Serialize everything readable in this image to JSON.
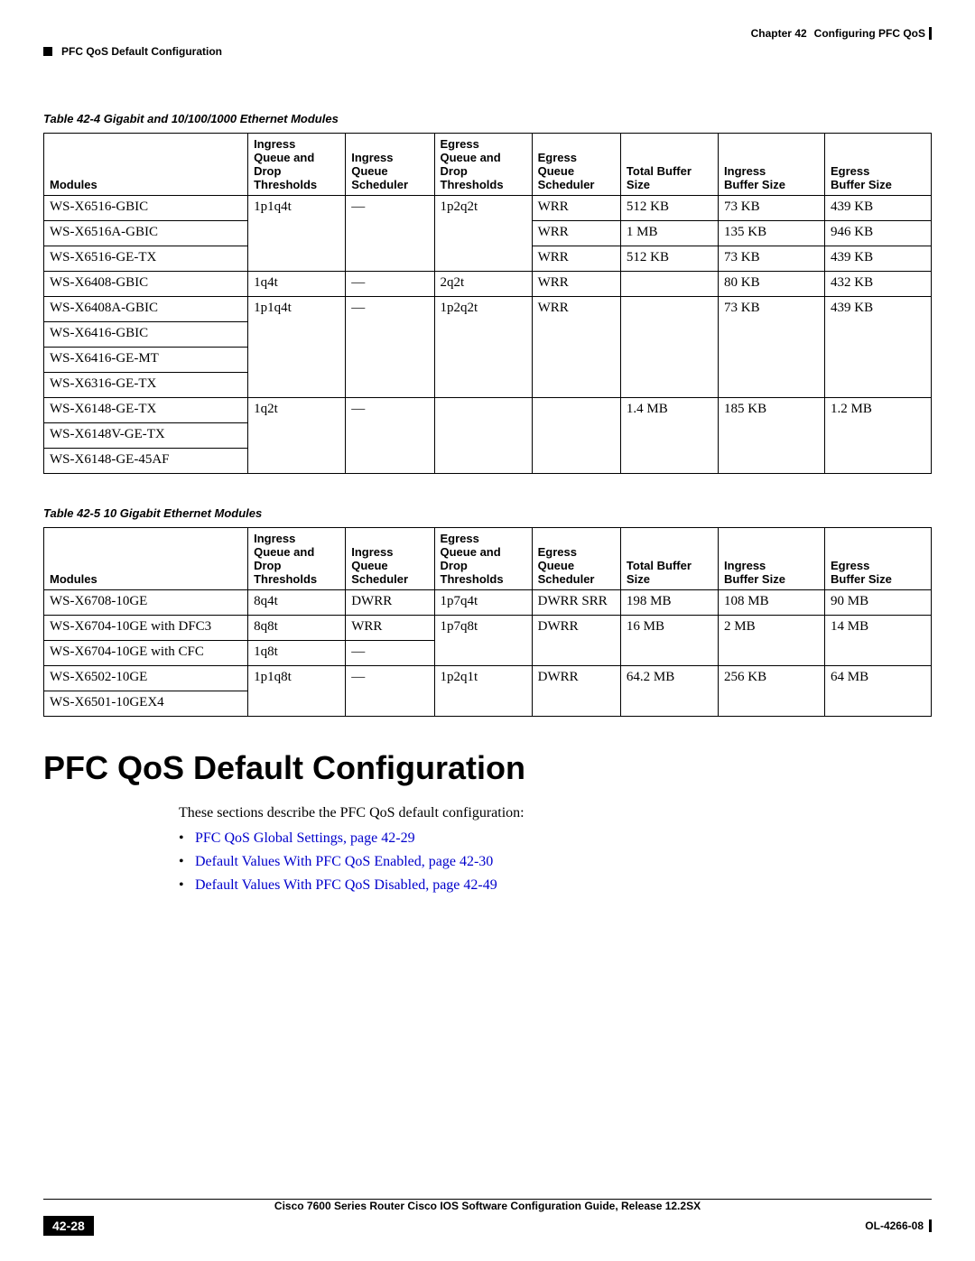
{
  "header": {
    "chapter": "Chapter 42",
    "chapter_title": "Configuring PFC QoS",
    "section": "PFC QoS Default Configuration"
  },
  "table1": {
    "caption": "Table 42-4   Gigabit and 10/100/1000 Ethernet Modules",
    "columns": [
      "Modules",
      "Ingress Queue and Drop Thresholds",
      "Ingress Queue Scheduler",
      "Egress Queue and Drop Thresholds",
      "Egress Queue Scheduler",
      "Total Buffer Size",
      "Ingress Buffer Size",
      "Egress Buffer Size"
    ],
    "col_widths": [
      "23%",
      "11%",
      "10%",
      "11%",
      "10%",
      "11%",
      "12%",
      "12%"
    ],
    "rows": [
      {
        "c": [
          "WS-X6516-GBIC",
          "1p1q4t",
          "—",
          "1p2q2t",
          "WRR",
          "512 KB",
          "73 KB",
          "439 KB"
        ]
      },
      {
        "c": [
          "WS-X6516A-GBIC",
          "",
          "",
          "",
          "WRR",
          "1 MB",
          "135 KB",
          "946 KB"
        ]
      },
      {
        "c": [
          "WS-X6516-GE-TX",
          "",
          "",
          "",
          "WRR",
          "512 KB",
          "73 KB",
          "439 KB"
        ]
      },
      {
        "c": [
          "WS-X6408-GBIC",
          "1q4t",
          "—",
          "2q2t",
          "WRR",
          "",
          "80 KB",
          "432 KB"
        ]
      },
      {
        "c": [
          "WS-X6408A-GBIC",
          "1p1q4t",
          "—",
          "1p2q2t",
          "WRR",
          "",
          "73 KB",
          "439 KB"
        ]
      },
      {
        "c": [
          "WS-X6416-GBIC",
          "",
          "",
          "",
          "",
          "",
          "",
          ""
        ]
      },
      {
        "c": [
          "WS-X6416-GE-MT",
          "",
          "",
          "",
          "",
          "",
          "",
          ""
        ]
      },
      {
        "c": [
          "WS-X6316-GE-TX",
          "",
          "",
          "",
          "",
          "",
          "",
          ""
        ]
      },
      {
        "c": [
          "WS-X6148-GE-TX",
          "1q2t",
          "—",
          "",
          "",
          "1.4 MB",
          "185 KB",
          "1.2 MB"
        ]
      },
      {
        "c": [
          "WS-X6148V-GE-TX",
          "",
          "",
          "",
          "",
          "",
          "",
          ""
        ]
      },
      {
        "c": [
          "WS-X6148-GE-45AF",
          "",
          "",
          "",
          "",
          "",
          "",
          ""
        ]
      }
    ]
  },
  "table2": {
    "caption": "Table 42-5   10 Gigabit Ethernet Modules",
    "columns": [
      "Modules",
      "Ingress Queue and Drop Thresholds",
      "Ingress Queue Scheduler",
      "Egress Queue and Drop Thresholds",
      "Egress Queue Scheduler",
      "Total Buffer Size",
      "Ingress Buffer Size",
      "Egress Buffer Size"
    ],
    "col_widths": [
      "23%",
      "11%",
      "10%",
      "11%",
      "10%",
      "11%",
      "12%",
      "12%"
    ],
    "rows": [
      {
        "c": [
          "WS-X6708-10GE",
          "8q4t",
          "DWRR",
          "1p7q4t",
          "DWRR SRR",
          "198 MB",
          "108 MB",
          "90 MB"
        ]
      },
      {
        "c": [
          "WS-X6704-10GE with DFC3",
          "8q8t",
          "WRR",
          "1p7q8t",
          "DWRR",
          "16 MB",
          "2 MB",
          "14 MB"
        ]
      },
      {
        "c": [
          "WS-X6704-10GE with CFC",
          "1q8t",
          "—",
          "",
          "",
          "",
          "",
          ""
        ]
      },
      {
        "c": [
          "WS-X6502-10GE",
          "1p1q8t",
          "—",
          "1p2q1t",
          "DWRR",
          "64.2 MB",
          "256 KB",
          "64 MB"
        ]
      },
      {
        "c": [
          "WS-X6501-10GEX4",
          "",
          "",
          "",
          "",
          "",
          "",
          ""
        ]
      }
    ]
  },
  "main": {
    "title": "PFC QoS Default Configuration",
    "intro": "These sections describe the PFC QoS default configuration:",
    "links": [
      "PFC QoS Global Settings, page 42-29",
      "Default Values With PFC QoS Enabled, page 42-30",
      "Default Values With PFC QoS Disabled, page 42-49"
    ]
  },
  "footer": {
    "guide": "Cisco 7600 Series Router Cisco IOS Software Configuration Guide, Release 12.2SX",
    "page": "42-28",
    "doc_id": "OL-4266-08"
  }
}
